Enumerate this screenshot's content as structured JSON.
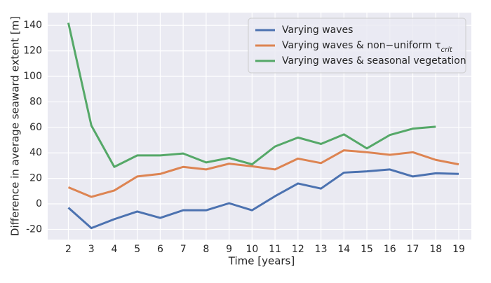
{
  "chart_data": {
    "type": "line",
    "x_label": "Time [years]",
    "y_label": "Difference in average seaward extent [m]",
    "x": [
      2,
      3,
      4,
      5,
      6,
      7,
      8,
      9,
      10,
      11,
      12,
      13,
      14,
      15,
      16,
      17,
      18,
      19
    ],
    "series": [
      {
        "name": "Varying waves",
        "color": "#4c72b0",
        "values": [
          -3,
          -19,
          -12,
          -6,
          -11,
          -5,
          -5,
          0.5,
          -5,
          6,
          16,
          12,
          24.5,
          25.5,
          27,
          21.5,
          24,
          23.5
        ]
      },
      {
        "name": "Varying waves & non−uniform τ_crit",
        "color": "#dd8452",
        "values": [
          13,
          5.5,
          10.5,
          21.5,
          23.5,
          29,
          27,
          31.5,
          29.5,
          27,
          35.5,
          32,
          42,
          40.5,
          38.5,
          40.5,
          34.5,
          31
        ]
      },
      {
        "name": "Varying waves & seasonal vegetation",
        "color": "#55a868",
        "values": [
          142,
          61.5,
          29,
          38,
          38,
          39.5,
          32.5,
          36,
          31,
          45,
          52,
          47,
          54.5,
          43.5,
          54,
          59,
          60.5,
          null
        ]
      }
    ],
    "xlim": [
      1.1,
      19.55
    ],
    "ylim": [
      -28,
      150
    ],
    "xticks": [
      2,
      3,
      4,
      5,
      6,
      7,
      8,
      9,
      10,
      11,
      12,
      13,
      14,
      15,
      16,
      17,
      18,
      19
    ],
    "yticks": [
      -20,
      0,
      20,
      40,
      60,
      80,
      100,
      120,
      140
    ],
    "grid": true,
    "legend": "upper-right"
  }
}
